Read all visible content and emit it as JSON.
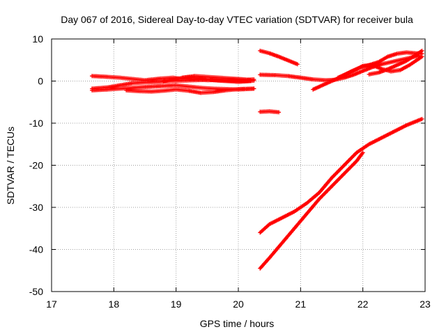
{
  "chart_data": {
    "type": "scatter",
    "title": "Day 067 of 2016, Sidereal Day-to-day VTEC variation (SDTVAR) for receiver bula",
    "xlabel": "GPS time / hours",
    "ylabel": "SDTVAR / TECUs",
    "xlim": [
      17,
      23
    ],
    "ylim": [
      -50,
      10
    ],
    "x_ticks": [
      17,
      18,
      19,
      20,
      21,
      22,
      23
    ],
    "y_ticks": [
      10,
      0,
      -10,
      -20,
      -30,
      -40,
      -50
    ],
    "grid": true,
    "grid_style": "dotted",
    "marker": "plus",
    "colors": {
      "series": "#ff0000",
      "grid": "#a0a0a0",
      "axis": "#000000"
    },
    "series": [
      {
        "x": [
          17.65,
          17.9,
          18.1,
          18.3,
          18.5,
          18.75,
          18.95,
          19.1,
          19.3,
          19.5,
          19.7,
          19.9,
          20.1,
          20.25
        ],
        "y": [
          1.2,
          1.0,
          0.8,
          0.5,
          0.2,
          0.6,
          0.8,
          0.5,
          0.4,
          0.2,
          0.3,
          0.4,
          0.3,
          0.4
        ]
      },
      {
        "x": [
          17.65,
          17.9,
          18.1,
          18.3,
          18.5,
          18.75,
          19.0,
          19.2,
          19.4,
          19.6,
          19.8,
          20.0,
          20.25
        ],
        "y": [
          -2.2,
          -2.0,
          -1.8,
          -1.6,
          -1.4,
          -1.2,
          -1.0,
          -1.3,
          -1.6,
          -1.8,
          -1.9,
          -2.0,
          -1.8
        ]
      },
      {
        "x": [
          17.65,
          17.9,
          18.1,
          18.3,
          18.5,
          18.7,
          18.9,
          19.1,
          19.3,
          19.5,
          19.7,
          19.9,
          20.1,
          20.25
        ],
        "y": [
          -1.8,
          -1.5,
          -1.0,
          -0.5,
          -0.3,
          -0.2,
          0.0,
          0.1,
          0.2,
          0.3,
          0.2,
          0.1,
          0.0,
          0.1
        ]
      },
      {
        "x": [
          18.2,
          18.4,
          18.6,
          18.8,
          19.0,
          19.2,
          19.4,
          19.6,
          19.8,
          20.0,
          20.25
        ],
        "y": [
          -2.2,
          -2.4,
          -2.5,
          -2.3,
          -2.0,
          -2.3,
          -2.8,
          -2.6,
          -2.2,
          -1.9,
          -1.8
        ]
      },
      {
        "x": [
          18.8,
          19.0,
          19.2,
          19.4,
          19.6,
          19.8,
          20.0,
          20.2
        ],
        "y": [
          0.0,
          0.5,
          1.0,
          0.6,
          0.2,
          0.0,
          -0.2,
          0.0
        ]
      },
      {
        "x": [
          19.1,
          19.3,
          19.5,
          19.7,
          19.9,
          20.1,
          20.2
        ],
        "y": [
          0.8,
          1.2,
          1.0,
          0.8,
          0.6,
          0.4,
          0.2
        ]
      },
      {
        "x": [
          20.35,
          20.5,
          20.65,
          20.8,
          20.95
        ],
        "y": [
          7.2,
          6.6,
          5.8,
          4.9,
          4.0
        ]
      },
      {
        "x": [
          20.35,
          20.5,
          20.65
        ],
        "y": [
          -7.3,
          -7.2,
          -7.4
        ]
      },
      {
        "x": [
          20.35,
          20.6,
          20.8,
          21.0,
          21.2,
          21.4,
          21.55,
          21.7,
          21.85,
          22.0,
          22.15,
          22.3,
          22.45,
          22.6,
          22.75,
          22.9
        ],
        "y": [
          1.5,
          1.4,
          1.2,
          0.8,
          0.4,
          0.2,
          0.3,
          0.8,
          1.5,
          2.4,
          3.3,
          4.0,
          4.5,
          5.0,
          5.5,
          6.0
        ]
      },
      {
        "x": [
          21.2,
          21.35,
          21.5,
          21.65,
          21.8,
          21.95,
          22.1,
          22.25,
          22.4,
          22.55,
          22.7,
          22.85,
          22.95
        ],
        "y": [
          -2.0,
          -1.0,
          0.0,
          1.0,
          2.2,
          3.2,
          3.8,
          4.5,
          5.8,
          6.5,
          6.8,
          6.6,
          6.5
        ]
      },
      {
        "x": [
          21.6,
          21.75,
          21.9,
          22.0,
          22.15,
          22.3,
          22.45,
          22.6,
          22.75,
          22.95
        ],
        "y": [
          0.8,
          1.8,
          2.8,
          3.6,
          3.8,
          2.9,
          2.3,
          2.6,
          3.8,
          5.8
        ]
      },
      {
        "x": [
          22.1,
          22.25,
          22.4,
          22.55,
          22.7,
          22.85,
          22.95
        ],
        "y": [
          1.6,
          2.0,
          2.8,
          3.8,
          4.8,
          6.2,
          7.2
        ]
      },
      {
        "x": [
          20.35,
          20.5,
          20.7,
          20.9,
          21.1,
          21.3,
          21.5,
          21.7,
          21.9,
          22.1,
          22.3,
          22.5,
          22.7,
          22.95
        ],
        "y": [
          -36.0,
          -34.0,
          -32.5,
          -31.0,
          -29.0,
          -26.5,
          -23.0,
          -20.0,
          -17.0,
          -15.0,
          -13.5,
          -12.0,
          -10.5,
          -9.0
        ]
      },
      {
        "x": [
          20.35,
          20.5,
          20.7,
          20.9,
          21.1,
          21.3,
          21.5,
          21.7,
          21.9,
          22.0
        ],
        "y": [
          -44.5,
          -42.0,
          -38.5,
          -35.0,
          -31.5,
          -28.0,
          -25.0,
          -22.0,
          -19.0,
          -17.0
        ]
      }
    ]
  }
}
